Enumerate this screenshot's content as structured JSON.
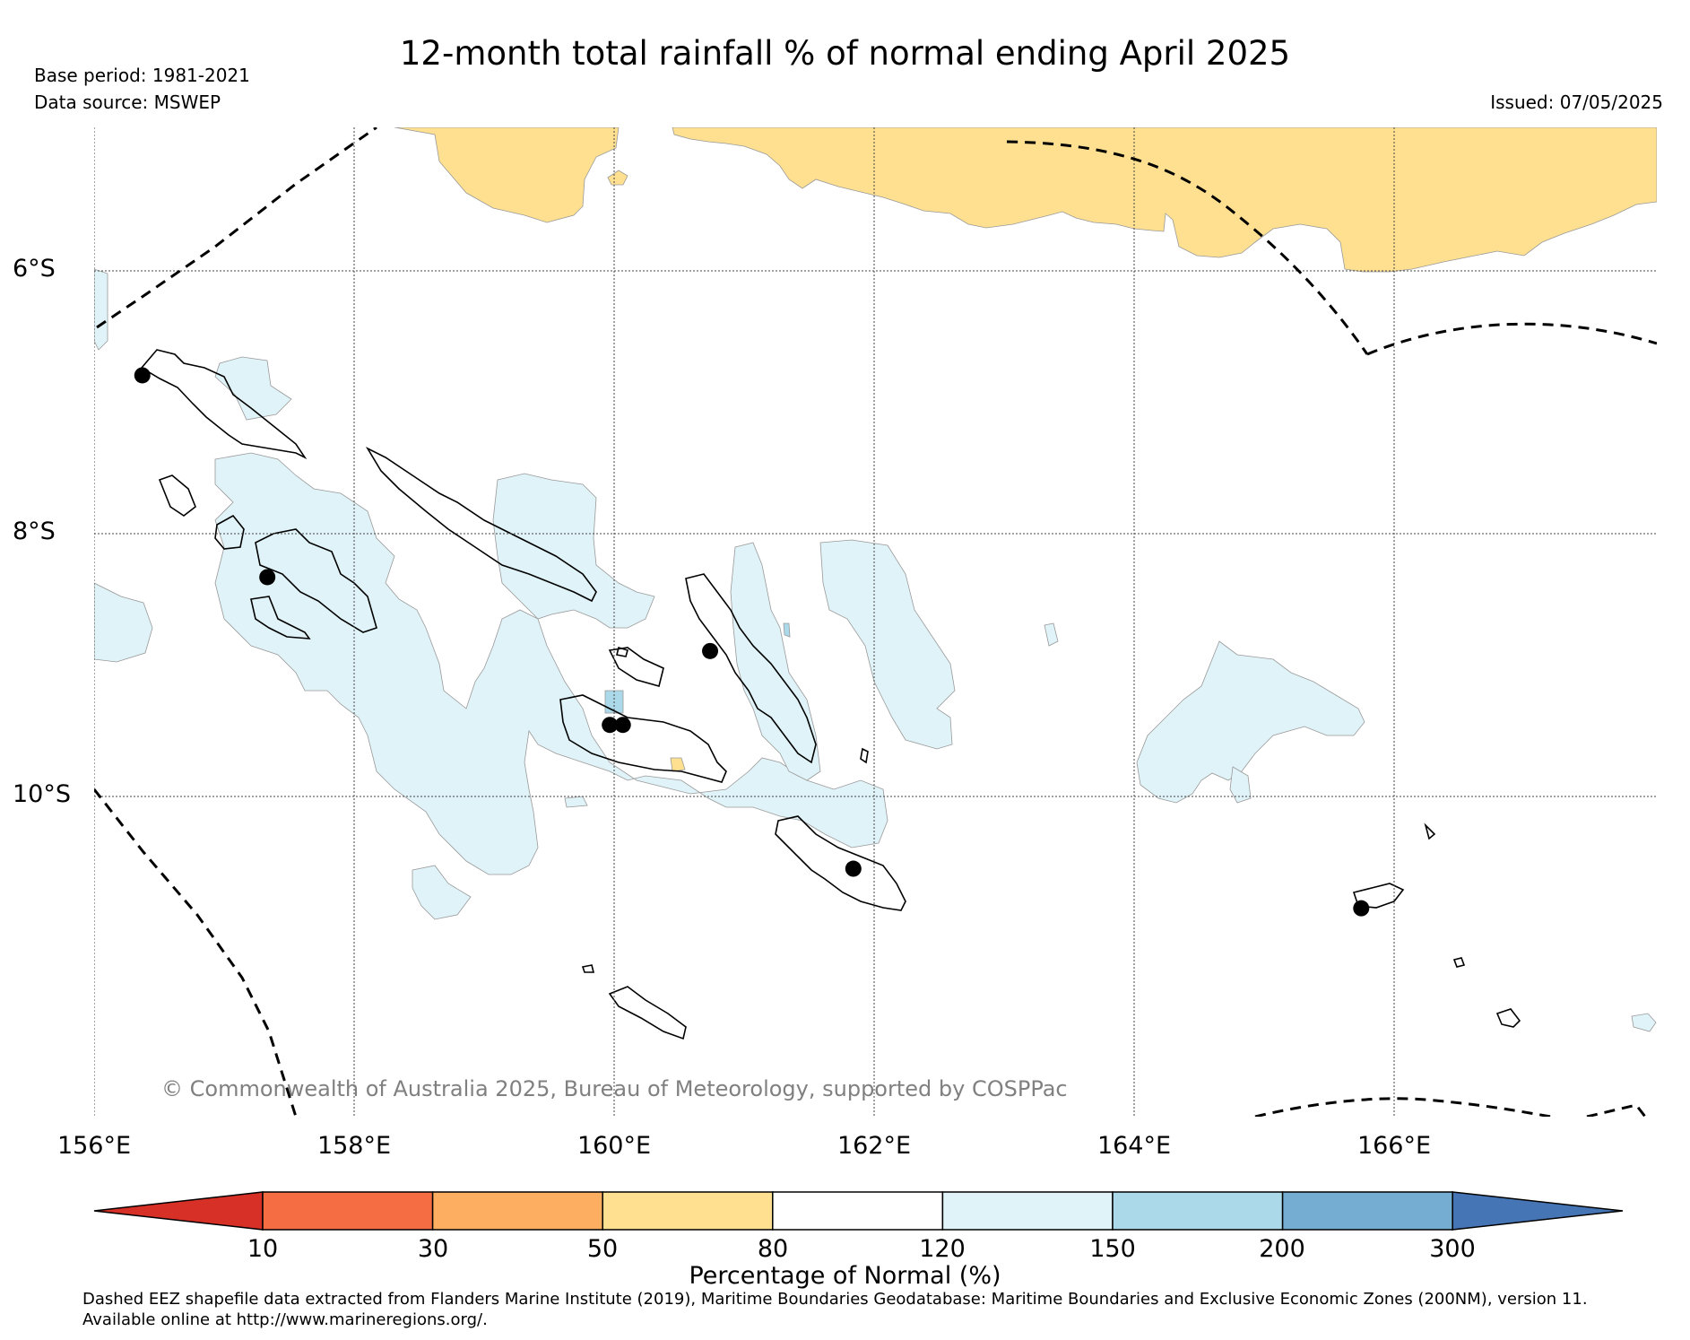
{
  "title": "12-month total rainfall % of normal ending April 2025",
  "base_period": "Base period: 1981-2021",
  "data_source": "Data source: MSWEP",
  "issued": "Issued: 07/05/2025",
  "copyright": "© Commonwealth of Australia 2025, Bureau of Meteorology, supported by COSPPac",
  "map": {
    "extent": {
      "lon_min": 156,
      "lon_max": 168,
      "lat_max": -4.9,
      "lat_min": -12.4
    },
    "lat_labels": [
      {
        "lat": -6,
        "label": "6°S"
      },
      {
        "lat": -8,
        "label": "8°S"
      },
      {
        "lat": -10,
        "label": "10°S"
      }
    ],
    "lon_labels": [
      {
        "lon": 156,
        "label": "156°E"
      },
      {
        "lon": 158,
        "label": "158°E"
      },
      {
        "lon": 160,
        "label": "160°E"
      },
      {
        "lon": 162,
        "label": "162°E"
      },
      {
        "lon": 164,
        "label": "164°E"
      },
      {
        "lon": 166,
        "label": "166°E"
      }
    ],
    "stations": [
      {
        "lon": 156.37,
        "lat": -6.78
      },
      {
        "lon": 157.33,
        "lat": -8.31
      },
      {
        "lon": 159.96,
        "lat": -9.43
      },
      {
        "lon": 160.06,
        "lat": -9.43
      },
      {
        "lon": 160.73,
        "lat": -8.87
      },
      {
        "lon": 161.83,
        "lat": -10.52
      },
      {
        "lon": 165.73,
        "lat": -10.82
      }
    ]
  },
  "colorbar": {
    "label": "Percentage of Normal (%)",
    "bins": [
      {
        "lower": "",
        "upper": "10",
        "color": "#d73027"
      },
      {
        "lower": "10",
        "upper": "30",
        "color": "#f46d43"
      },
      {
        "lower": "30",
        "upper": "50",
        "color": "#fdae61"
      },
      {
        "lower": "50",
        "upper": "80",
        "color": "#fee090"
      },
      {
        "lower": "80",
        "upper": "120",
        "color": "#ffffff"
      },
      {
        "lower": "120",
        "upper": "150",
        "color": "#e0f3f8"
      },
      {
        "lower": "150",
        "upper": "200",
        "color": "#abd9e9"
      },
      {
        "lower": "200",
        "upper": "300",
        "color": "#74add1"
      },
      {
        "lower": "300",
        "upper": "",
        "color": "#4575b4"
      }
    ],
    "tick_labels": [
      "10",
      "30",
      "50",
      "80",
      "120",
      "150",
      "200",
      "300"
    ]
  },
  "footnote": {
    "line1": "Dashed EEZ shapefile data extracted from Flanders Marine Institute (2019), Maritime Boundaries Geodatabase: Maritime Boundaries and Exclusive Economic Zones (200NM), version 11.",
    "line2": "Available online at http://www.marineregions.org/."
  }
}
